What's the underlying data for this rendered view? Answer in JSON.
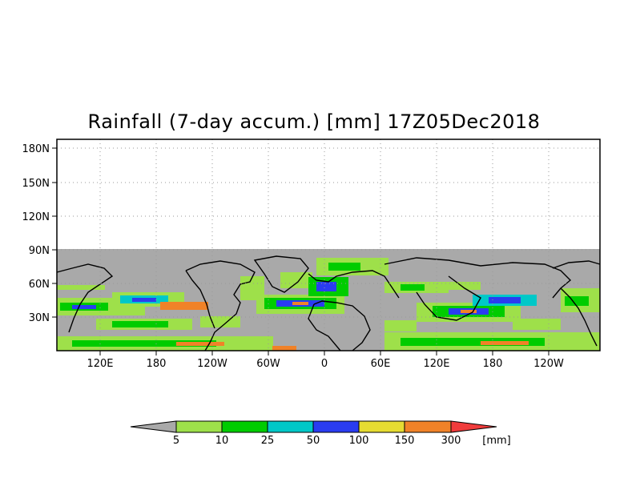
{
  "title": "Rainfall (7-day accum.) [mm] 17Z05Dec2018",
  "map": {
    "lat_labels": [
      "180N",
      "150N",
      "120N",
      "90N",
      "60N",
      "30N"
    ],
    "lon_labels": [
      "120E",
      "180",
      "120W",
      "60W",
      "0",
      "60E",
      "120E",
      "180",
      "120W"
    ],
    "no_data_color": "#a9a9a9",
    "grid": "dotted"
  },
  "colorbar": {
    "colors": [
      "#a9a9a9",
      "#9ee04a",
      "#00cc00",
      "#00c8c8",
      "#2a3cf0",
      "#e6dc32",
      "#f08228",
      "#f03c3c"
    ],
    "labels": [
      "5",
      "10",
      "25",
      "50",
      "100",
      "150",
      "300"
    ],
    "unit": "[mm]"
  }
}
